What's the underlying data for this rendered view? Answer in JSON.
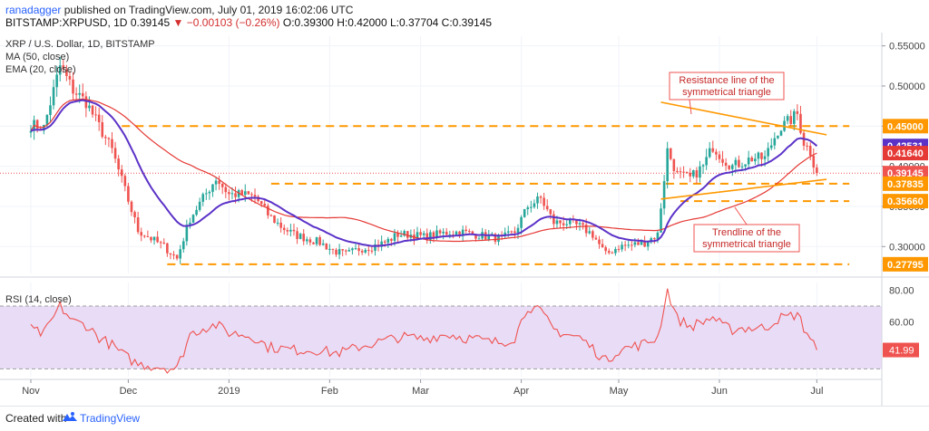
{
  "header": {
    "author": "ranadagger",
    "published": " published on TradingView.com, July 01, 2019 16:02:06 UTC",
    "symbol": "BITSTAMP:XRPUSD, 1D",
    "last": "0.39145",
    "change": "▼ −0.00103 (−0.26%)",
    "ohlc": "O:0.39300 H:0.42000 L:0.37704 C:0.39145"
  },
  "legend": {
    "symbol": "XRP / U.S. Dollar, 1D, BITSTAMP",
    "ma": "MA (50, close)",
    "ema": "EMA (20, close)",
    "rsi": "RSI (14, close)"
  },
  "annotations": {
    "resistance": [
      "Resistance line of the",
      "symmetrical triangle"
    ],
    "trendline": [
      "Trendline of the",
      "symmetrical triangle"
    ]
  },
  "footer": {
    "created": "Created with",
    "brand": "TradingView"
  },
  "colors": {
    "up": "#26a69a",
    "down": "#ef5350",
    "ma": "#e53935",
    "ema": "#5b32c8",
    "levels": "#ff9800",
    "rsi_line": "#ef5350",
    "rsi_band": "#e9dcf7",
    "grid": "#f0f3fa"
  },
  "chart_data": {
    "type": "candlestick",
    "price_axis": {
      "ylim": [
        0.2665,
        0.562
      ],
      "ticks": [
        "0.55000",
        "0.50000",
        "0.45000",
        "0.40000",
        "0.35000",
        "0.30000"
      ],
      "tick_values": [
        0.55,
        0.5,
        0.45,
        0.4,
        0.35,
        0.3
      ]
    },
    "x_axis": {
      "labels": [
        "Nov",
        "Dec",
        "2019",
        "Feb",
        "Mar",
        "Apr",
        "May",
        "Jun",
        "Jul"
      ],
      "label_day_index": [
        0,
        30,
        61,
        92,
        120,
        151,
        181,
        212,
        242
      ]
    },
    "price_labels": [
      {
        "value": 0.45,
        "text": "0.45000",
        "color": "#ff9800"
      },
      {
        "value": 0.42531,
        "text": "0.42531",
        "color": "#5b32c8"
      },
      {
        "value": 0.4164,
        "text": "0.41640",
        "color": "#e53935"
      },
      {
        "value": 0.39145,
        "text": "0.39145",
        "color": "#ef5350"
      },
      {
        "value": 0.37835,
        "text": "0.37835",
        "color": "#ff9800"
      },
      {
        "value": 0.3566,
        "text": "0.35660",
        "color": "#ff9800"
      },
      {
        "value": 0.27795,
        "text": "0.27795",
        "color": "#ff9800"
      }
    ],
    "levels": [
      {
        "value": 0.45,
        "from_day": 28,
        "to_day": 252
      },
      {
        "value": 0.37835,
        "from_day": 74,
        "to_day": 252
      },
      {
        "value": 0.3566,
        "from_day": 200,
        "to_day": 252
      },
      {
        "value": 0.27795,
        "from_day": 42,
        "to_day": 252
      }
    ],
    "trendlines": [
      {
        "name": "resistance",
        "from": [
          194,
          0.4798
        ],
        "to": [
          245,
          0.4392
        ]
      },
      {
        "name": "trendline",
        "from": [
          194,
          0.3592
        ],
        "to": [
          245,
          0.3837
        ]
      }
    ],
    "anchors": [
      [
        0,
        0.452
      ],
      [
        4,
        0.448
      ],
      [
        9,
        0.525
      ],
      [
        13,
        0.495
      ],
      [
        17,
        0.48
      ],
      [
        21,
        0.45
      ],
      [
        25,
        0.42
      ],
      [
        29,
        0.37
      ],
      [
        33,
        0.32
      ],
      [
        37,
        0.31
      ],
      [
        41,
        0.3
      ],
      [
        45,
        0.285
      ],
      [
        49,
        0.335
      ],
      [
        53,
        0.36
      ],
      [
        57,
        0.385
      ],
      [
        61,
        0.365
      ],
      [
        65,
        0.365
      ],
      [
        69,
        0.362
      ],
      [
        73,
        0.34
      ],
      [
        77,
        0.325
      ],
      [
        81,
        0.315
      ],
      [
        85,
        0.31
      ],
      [
        89,
        0.305
      ],
      [
        93,
        0.295
      ],
      [
        97,
        0.29
      ],
      [
        101,
        0.297
      ],
      [
        105,
        0.3
      ],
      [
        109,
        0.305
      ],
      [
        113,
        0.315
      ],
      [
        117,
        0.315
      ],
      [
        121,
        0.312
      ],
      [
        125,
        0.315
      ],
      [
        129,
        0.318
      ],
      [
        133,
        0.318
      ],
      [
        137,
        0.315
      ],
      [
        141,
        0.312
      ],
      [
        145,
        0.31
      ],
      [
        149,
        0.318
      ],
      [
        153,
        0.35
      ],
      [
        157,
        0.36
      ],
      [
        161,
        0.33
      ],
      [
        165,
        0.33
      ],
      [
        169,
        0.325
      ],
      [
        173,
        0.315
      ],
      [
        177,
        0.29
      ],
      [
        181,
        0.3
      ],
      [
        185,
        0.302
      ],
      [
        189,
        0.305
      ],
      [
        193,
        0.315
      ],
      [
        196,
        0.42
      ],
      [
        199,
        0.39
      ],
      [
        203,
        0.385
      ],
      [
        207,
        0.4
      ],
      [
        210,
        0.425
      ],
      [
        213,
        0.41
      ],
      [
        216,
        0.4
      ],
      [
        219,
        0.405
      ],
      [
        222,
        0.41
      ],
      [
        226,
        0.41
      ],
      [
        230,
        0.445
      ],
      [
        233,
        0.455
      ],
      [
        236,
        0.465
      ],
      [
        238,
        0.43
      ],
      [
        240,
        0.418
      ],
      [
        242,
        0.391
      ]
    ],
    "ma50_end": 0.4164,
    "ema20_end": 0.42531,
    "last_close": 0.39145,
    "rsi": {
      "ylim": [
        25,
        85
      ],
      "ticks": [
        "80.00",
        "60.00"
      ],
      "tick_values": [
        80,
        60
      ],
      "band": [
        30,
        70
      ],
      "last": 41.99,
      "last_text": "41.99",
      "anchors": [
        [
          0,
          55
        ],
        [
          4,
          52
        ],
        [
          9,
          70
        ],
        [
          13,
          60
        ],
        [
          17,
          58
        ],
        [
          21,
          50
        ],
        [
          25,
          45
        ],
        [
          29,
          38
        ],
        [
          33,
          33
        ],
        [
          37,
          32
        ],
        [
          41,
          31
        ],
        [
          45,
          30
        ],
        [
          49,
          52
        ],
        [
          53,
          56
        ],
        [
          57,
          58
        ],
        [
          61,
          53
        ],
        [
          65,
          52
        ],
        [
          69,
          50
        ],
        [
          73,
          44
        ],
        [
          77,
          43
        ],
        [
          81,
          42
        ],
        [
          85,
          42
        ],
        [
          89,
          42
        ],
        [
          93,
          40
        ],
        [
          97,
          41
        ],
        [
          101,
          44
        ],
        [
          105,
          46
        ],
        [
          109,
          48
        ],
        [
          113,
          50
        ],
        [
          117,
          50
        ],
        [
          121,
          49
        ],
        [
          125,
          51
        ],
        [
          129,
          52
        ],
        [
          133,
          50
        ],
        [
          137,
          49
        ],
        [
          141,
          47
        ],
        [
          145,
          47
        ],
        [
          149,
          50
        ],
        [
          153,
          70
        ],
        [
          157,
          66
        ],
        [
          161,
          55
        ],
        [
          165,
          52
        ],
        [
          169,
          50
        ],
        [
          173,
          43
        ],
        [
          177,
          35
        ],
        [
          181,
          42
        ],
        [
          185,
          44
        ],
        [
          189,
          46
        ],
        [
          193,
          50
        ],
        [
          196,
          80
        ],
        [
          199,
          62
        ],
        [
          203,
          57
        ],
        [
          207,
          60
        ],
        [
          210,
          63
        ],
        [
          213,
          57
        ],
        [
          216,
          55
        ],
        [
          219,
          56
        ],
        [
          222,
          56
        ],
        [
          226,
          56
        ],
        [
          230,
          62
        ],
        [
          233,
          63
        ],
        [
          236,
          65
        ],
        [
          238,
          56
        ],
        [
          240,
          50
        ],
        [
          242,
          42
        ]
      ]
    }
  }
}
